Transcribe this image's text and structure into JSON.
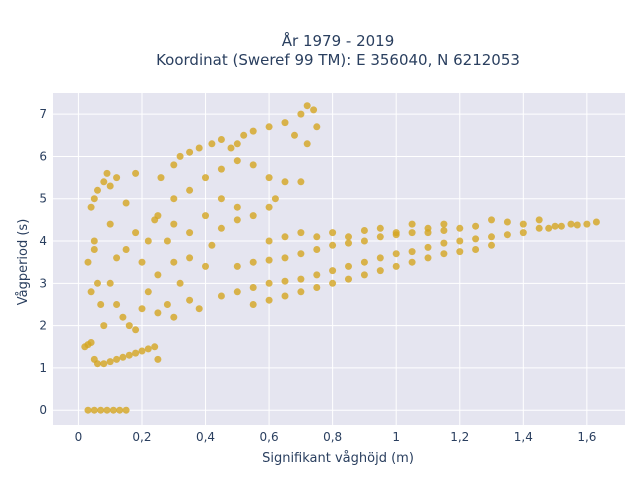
{
  "chart_data": {
    "type": "scatter",
    "title": "År 1979 - 2019",
    "subtitle": "Koordinat (Sweref 99 TM): E 356040, N 6212053",
    "xlabel": "Signifikant våghöjd (m)",
    "ylabel": "Vågperiod (s)",
    "xlim": [
      -0.08,
      1.72
    ],
    "ylim": [
      -0.35,
      7.5
    ],
    "x_ticks": [
      0,
      0.2,
      0.4,
      0.6,
      0.8,
      1,
      1.2,
      1.4,
      1.6
    ],
    "x_tick_labels": [
      "0",
      "0,2",
      "0,4",
      "0,6",
      "0,8",
      "1",
      "1,2",
      "1,4",
      "1,6"
    ],
    "y_ticks": [
      0,
      1,
      2,
      3,
      4,
      5,
      6,
      7
    ],
    "y_tick_labels": [
      "0",
      "1",
      "2",
      "3",
      "4",
      "5",
      "6",
      "7"
    ],
    "grid": true,
    "marker_color": "#d4a520",
    "plot_background": "#e5e5f0",
    "series": [
      {
        "points": [
          [
            0.03,
            0.0
          ],
          [
            0.05,
            0.0
          ],
          [
            0.07,
            0.0
          ],
          [
            0.09,
            0.0
          ],
          [
            0.11,
            0.0
          ],
          [
            0.13,
            0.0
          ],
          [
            0.15,
            0.0
          ],
          [
            0.02,
            1.5
          ],
          [
            0.03,
            1.55
          ],
          [
            0.04,
            1.6
          ],
          [
            0.05,
            1.2
          ],
          [
            0.06,
            1.1
          ],
          [
            0.08,
            1.1
          ],
          [
            0.1,
            1.15
          ],
          [
            0.12,
            1.2
          ],
          [
            0.14,
            1.25
          ],
          [
            0.16,
            1.3
          ],
          [
            0.18,
            1.35
          ],
          [
            0.2,
            1.4
          ],
          [
            0.22,
            1.45
          ],
          [
            0.24,
            1.5
          ],
          [
            0.25,
            1.2
          ],
          [
            0.03,
            3.5
          ],
          [
            0.04,
            4.8
          ],
          [
            0.05,
            5.0
          ],
          [
            0.06,
            5.2
          ],
          [
            0.08,
            5.4
          ],
          [
            0.09,
            5.6
          ],
          [
            0.1,
            5.3
          ],
          [
            0.12,
            5.5
          ],
          [
            0.18,
            5.6
          ],
          [
            0.15,
            4.9
          ],
          [
            0.05,
            4.0
          ],
          [
            0.06,
            3.0
          ],
          [
            0.07,
            2.5
          ],
          [
            0.08,
            2.0
          ],
          [
            0.05,
            3.8
          ],
          [
            0.04,
            2.8
          ],
          [
            0.1,
            3.0
          ],
          [
            0.12,
            2.5
          ],
          [
            0.14,
            2.2
          ],
          [
            0.16,
            2.0
          ],
          [
            0.18,
            1.9
          ],
          [
            0.2,
            3.5
          ],
          [
            0.22,
            4.0
          ],
          [
            0.24,
            4.5
          ],
          [
            0.15,
            3.8
          ],
          [
            0.18,
            4.2
          ],
          [
            0.1,
            4.4
          ],
          [
            0.12,
            3.6
          ],
          [
            0.2,
            2.4
          ],
          [
            0.25,
            2.3
          ],
          [
            0.26,
            5.5
          ],
          [
            0.3,
            5.8
          ],
          [
            0.32,
            6.0
          ],
          [
            0.35,
            6.1
          ],
          [
            0.38,
            6.2
          ],
          [
            0.42,
            6.3
          ],
          [
            0.45,
            6.4
          ],
          [
            0.48,
            6.2
          ],
          [
            0.5,
            6.3
          ],
          [
            0.52,
            6.5
          ],
          [
            0.55,
            6.6
          ],
          [
            0.6,
            6.7
          ],
          [
            0.65,
            6.8
          ],
          [
            0.7,
            7.0
          ],
          [
            0.72,
            7.2
          ],
          [
            0.74,
            7.1
          ],
          [
            0.68,
            6.5
          ],
          [
            0.72,
            6.3
          ],
          [
            0.75,
            6.7
          ],
          [
            0.3,
            5.0
          ],
          [
            0.35,
            5.2
          ],
          [
            0.4,
            5.5
          ],
          [
            0.45,
            5.7
          ],
          [
            0.5,
            5.9
          ],
          [
            0.55,
            5.8
          ],
          [
            0.6,
            5.5
          ],
          [
            0.65,
            5.4
          ],
          [
            0.7,
            5.4
          ],
          [
            0.45,
            5.0
          ],
          [
            0.5,
            4.8
          ],
          [
            0.55,
            4.6
          ],
          [
            0.6,
            4.8
          ],
          [
            0.62,
            5.0
          ],
          [
            0.25,
            4.6
          ],
          [
            0.3,
            4.4
          ],
          [
            0.35,
            4.2
          ],
          [
            0.4,
            4.6
          ],
          [
            0.45,
            4.3
          ],
          [
            0.5,
            4.5
          ],
          [
            0.28,
            4.0
          ],
          [
            0.3,
            3.5
          ],
          [
            0.32,
            3.0
          ],
          [
            0.35,
            2.6
          ],
          [
            0.38,
            2.4
          ],
          [
            0.25,
            3.2
          ],
          [
            0.22,
            2.8
          ],
          [
            0.28,
            2.5
          ],
          [
            0.3,
            2.2
          ],
          [
            0.35,
            3.6
          ],
          [
            0.4,
            3.4
          ],
          [
            0.42,
            3.9
          ],
          [
            0.45,
            2.7
          ],
          [
            0.5,
            2.8
          ],
          [
            0.55,
            2.9
          ],
          [
            0.6,
            3.0
          ],
          [
            0.65,
            3.05
          ],
          [
            0.7,
            3.1
          ],
          [
            0.75,
            3.2
          ],
          [
            0.8,
            3.3
          ],
          [
            0.85,
            3.4
          ],
          [
            0.9,
            3.5
          ],
          [
            0.95,
            3.6
          ],
          [
            1.0,
            3.7
          ],
          [
            1.05,
            3.75
          ],
          [
            1.1,
            3.85
          ],
          [
            1.15,
            3.95
          ],
          [
            1.2,
            4.0
          ],
          [
            1.25,
            4.05
          ],
          [
            1.3,
            4.1
          ],
          [
            1.35,
            4.15
          ],
          [
            1.4,
            4.2
          ],
          [
            1.45,
            4.3
          ],
          [
            1.5,
            4.35
          ],
          [
            1.55,
            4.4
          ],
          [
            1.6,
            4.4
          ],
          [
            1.63,
            4.45
          ],
          [
            0.5,
            3.4
          ],
          [
            0.55,
            3.5
          ],
          [
            0.6,
            3.55
          ],
          [
            0.65,
            3.6
          ],
          [
            0.7,
            3.7
          ],
          [
            0.75,
            3.8
          ],
          [
            0.8,
            3.9
          ],
          [
            0.85,
            3.95
          ],
          [
            0.9,
            4.0
          ],
          [
            0.95,
            4.1
          ],
          [
            1.0,
            4.15
          ],
          [
            1.05,
            4.2
          ],
          [
            1.1,
            4.2
          ],
          [
            1.15,
            4.25
          ],
          [
            1.2,
            4.3
          ],
          [
            1.25,
            4.35
          ],
          [
            1.3,
            4.5
          ],
          [
            1.35,
            4.45
          ],
          [
            1.4,
            4.4
          ],
          [
            1.45,
            4.5
          ],
          [
            1.48,
            4.3
          ],
          [
            1.52,
            4.35
          ],
          [
            1.57,
            4.38
          ],
          [
            0.6,
            4.0
          ],
          [
            0.65,
            4.1
          ],
          [
            0.7,
            4.2
          ],
          [
            0.75,
            4.1
          ],
          [
            0.8,
            4.2
          ],
          [
            0.85,
            4.1
          ],
          [
            0.9,
            4.25
          ],
          [
            0.95,
            4.3
          ],
          [
            1.0,
            4.2
          ],
          [
            1.05,
            4.4
          ],
          [
            1.1,
            4.3
          ],
          [
            1.15,
            4.4
          ],
          [
            0.55,
            2.5
          ],
          [
            0.6,
            2.6
          ],
          [
            0.65,
            2.7
          ],
          [
            0.7,
            2.8
          ],
          [
            0.75,
            2.9
          ],
          [
            0.8,
            3.0
          ],
          [
            0.85,
            3.1
          ],
          [
            0.9,
            3.2
          ],
          [
            0.95,
            3.3
          ],
          [
            1.0,
            3.4
          ],
          [
            1.05,
            3.5
          ],
          [
            1.1,
            3.6
          ],
          [
            1.15,
            3.7
          ],
          [
            1.2,
            3.75
          ],
          [
            1.25,
            3.8
          ],
          [
            1.3,
            3.9
          ]
        ]
      }
    ]
  }
}
